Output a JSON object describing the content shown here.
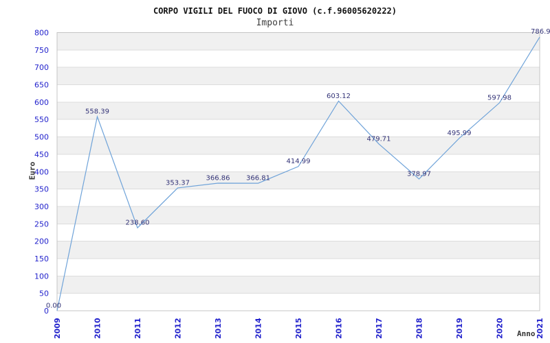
{
  "chart_data": {
    "type": "line",
    "title": "CORPO VIGILI DEL FUOCO DI GIOVO (c.f.96005620222)",
    "subtitle": "Importi",
    "xlabel": "Anno",
    "ylabel": "Euro",
    "categories": [
      "2009",
      "2010",
      "2011",
      "2012",
      "2013",
      "2014",
      "2015",
      "2016",
      "2017",
      "2018",
      "2019",
      "2020",
      "2021"
    ],
    "values": [
      0.0,
      558.39,
      238.6,
      353.37,
      366.86,
      366.81,
      414.99,
      603.12,
      479.71,
      378.97,
      495.99,
      597.98,
      786.9
    ],
    "value_labels": [
      "0.00",
      "558.39",
      "238.60",
      "353.37",
      "366.86",
      "366.81",
      "414.99",
      "603.12",
      "479.71",
      "378.97",
      "495.99",
      "597.98",
      "786.9"
    ],
    "ylim": [
      0,
      800
    ],
    "ytick_step": 50,
    "ytick_labels": [
      "0",
      "50",
      "100",
      "150",
      "200",
      "250",
      "300",
      "350",
      "400",
      "450",
      "500",
      "550",
      "600",
      "650",
      "700",
      "750",
      "800"
    ],
    "grid": true,
    "legend": "none",
    "band_fill_alternating": true,
    "colors": {
      "line": "#6fa3d9",
      "axis_tick_text": "#2222cc",
      "data_label_text": "#333377",
      "band": "#f0f0f0",
      "gridline": "#dcdcdc",
      "plot_border": "#c4c4c4",
      "title_text": "#111111",
      "subtitle_text": "#3d3d3d",
      "axis_title_text": "#333333",
      "background": "#ffffff"
    }
  }
}
